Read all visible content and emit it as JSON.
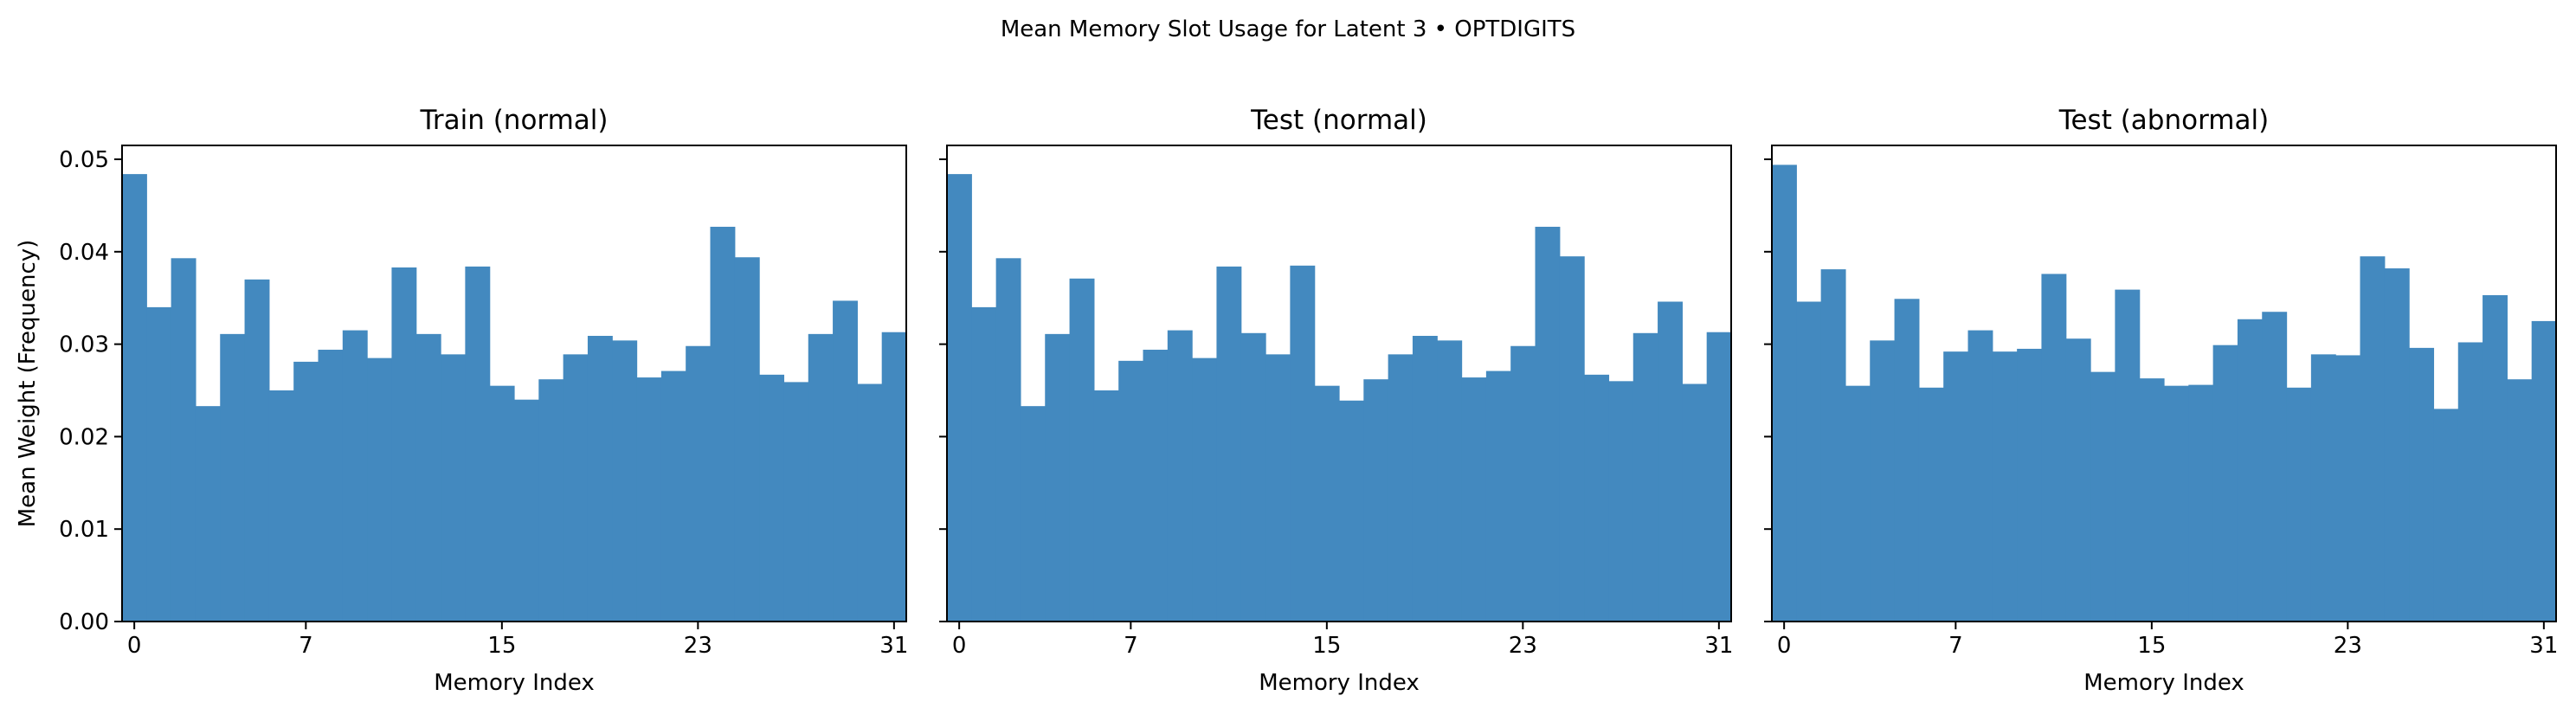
{
  "figure_title": "Mean Memory Slot Usage for Latent 3 • OPTDIGITS",
  "bar_color": "#4389bf",
  "chart_data": [
    {
      "type": "bar",
      "title": "Train (normal)",
      "xlabel": "Memory Index",
      "ylabel": "Mean Weight (Frequency)",
      "x": [
        0,
        1,
        2,
        3,
        4,
        5,
        6,
        7,
        8,
        9,
        10,
        11,
        12,
        13,
        14,
        15,
        16,
        17,
        18,
        19,
        20,
        21,
        22,
        23,
        24,
        25,
        26,
        27,
        28,
        29,
        30,
        31
      ],
      "values": [
        0.0484,
        0.034,
        0.0393,
        0.0233,
        0.0311,
        0.037,
        0.025,
        0.0281,
        0.0294,
        0.0315,
        0.0285,
        0.0383,
        0.0311,
        0.0289,
        0.0384,
        0.0255,
        0.024,
        0.0262,
        0.0289,
        0.0309,
        0.0304,
        0.0264,
        0.0271,
        0.0298,
        0.0427,
        0.0394,
        0.0267,
        0.0259,
        0.0311,
        0.0347,
        0.0257,
        0.0313
      ],
      "xticks": [
        0,
        7,
        15,
        23,
        31
      ],
      "yticks": [
        "0.00",
        "0.01",
        "0.02",
        "0.03",
        "0.04",
        "0.05"
      ],
      "xlim": [
        -0.5,
        31.5
      ],
      "ylim": [
        0,
        0.0515
      ],
      "grid": false
    },
    {
      "type": "bar",
      "title": "Test (normal)",
      "xlabel": "Memory Index",
      "ylabel": "",
      "x": [
        0,
        1,
        2,
        3,
        4,
        5,
        6,
        7,
        8,
        9,
        10,
        11,
        12,
        13,
        14,
        15,
        16,
        17,
        18,
        19,
        20,
        21,
        22,
        23,
        24,
        25,
        26,
        27,
        28,
        29,
        30,
        31
      ],
      "values": [
        0.0484,
        0.034,
        0.0393,
        0.0233,
        0.0311,
        0.0371,
        0.025,
        0.0282,
        0.0294,
        0.0315,
        0.0285,
        0.0384,
        0.0312,
        0.0289,
        0.0385,
        0.0255,
        0.0239,
        0.0262,
        0.0289,
        0.0309,
        0.0304,
        0.0264,
        0.0271,
        0.0298,
        0.0427,
        0.0395,
        0.0267,
        0.026,
        0.0312,
        0.0346,
        0.0257,
        0.0313
      ],
      "xticks": [
        0,
        7,
        15,
        23,
        31
      ],
      "yticks": [
        "0.00",
        "0.01",
        "0.02",
        "0.03",
        "0.04",
        "0.05"
      ],
      "xlim": [
        -0.5,
        31.5
      ],
      "ylim": [
        0,
        0.0515
      ],
      "grid": false
    },
    {
      "type": "bar",
      "title": "Test (abnormal)",
      "xlabel": "Memory Index",
      "ylabel": "",
      "x": [
        0,
        1,
        2,
        3,
        4,
        5,
        6,
        7,
        8,
        9,
        10,
        11,
        12,
        13,
        14,
        15,
        16,
        17,
        18,
        19,
        20,
        21,
        22,
        23,
        24,
        25,
        26,
        27,
        28,
        29,
        30,
        31
      ],
      "values": [
        0.0494,
        0.0346,
        0.0381,
        0.0255,
        0.0304,
        0.0349,
        0.0253,
        0.0292,
        0.0315,
        0.0292,
        0.0295,
        0.0376,
        0.0306,
        0.027,
        0.0359,
        0.0263,
        0.0255,
        0.0256,
        0.0299,
        0.0327,
        0.0335,
        0.0253,
        0.0289,
        0.0288,
        0.0395,
        0.0382,
        0.0296,
        0.023,
        0.0302,
        0.0353,
        0.0262,
        0.0325
      ],
      "xticks": [
        0,
        7,
        15,
        23,
        31
      ],
      "yticks": [
        "0.00",
        "0.01",
        "0.02",
        "0.03",
        "0.04",
        "0.05"
      ],
      "xlim": [
        -0.5,
        31.5
      ],
      "ylim": [
        0,
        0.0515
      ],
      "grid": false
    }
  ]
}
